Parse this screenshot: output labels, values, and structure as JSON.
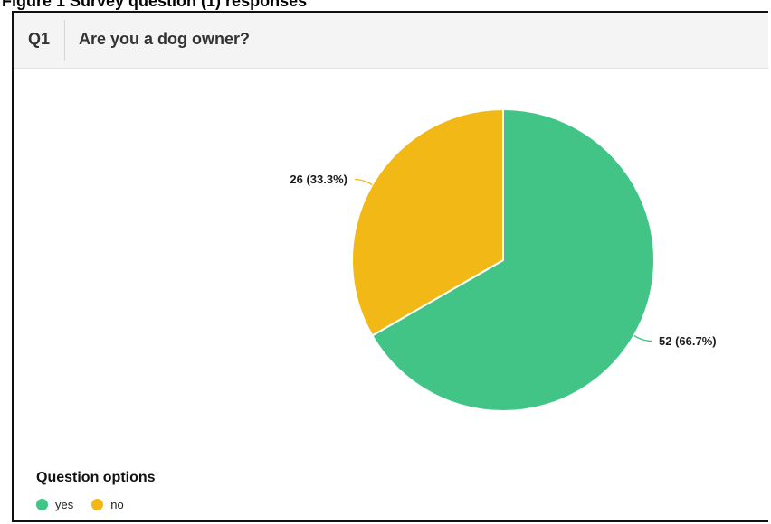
{
  "caption": "Figure 1 Survey question (1) responses",
  "question": {
    "number": "Q1",
    "title": "Are you a dog owner?"
  },
  "legend": {
    "title": "Question options",
    "items": [
      {
        "label": "yes",
        "color": "#42c486"
      },
      {
        "label": "no",
        "color": "#f2b916"
      }
    ]
  },
  "chart_data": {
    "type": "pie",
    "categories": [
      "yes",
      "no"
    ],
    "values": [
      52,
      26
    ],
    "data_labels": [
      "52 (66.7%)",
      "26 (33.3%)"
    ],
    "colors": [
      "#42c486",
      "#f2b916"
    ],
    "start_angle": "12 o'clock, clockwise",
    "legend_position": "bottom-left"
  }
}
